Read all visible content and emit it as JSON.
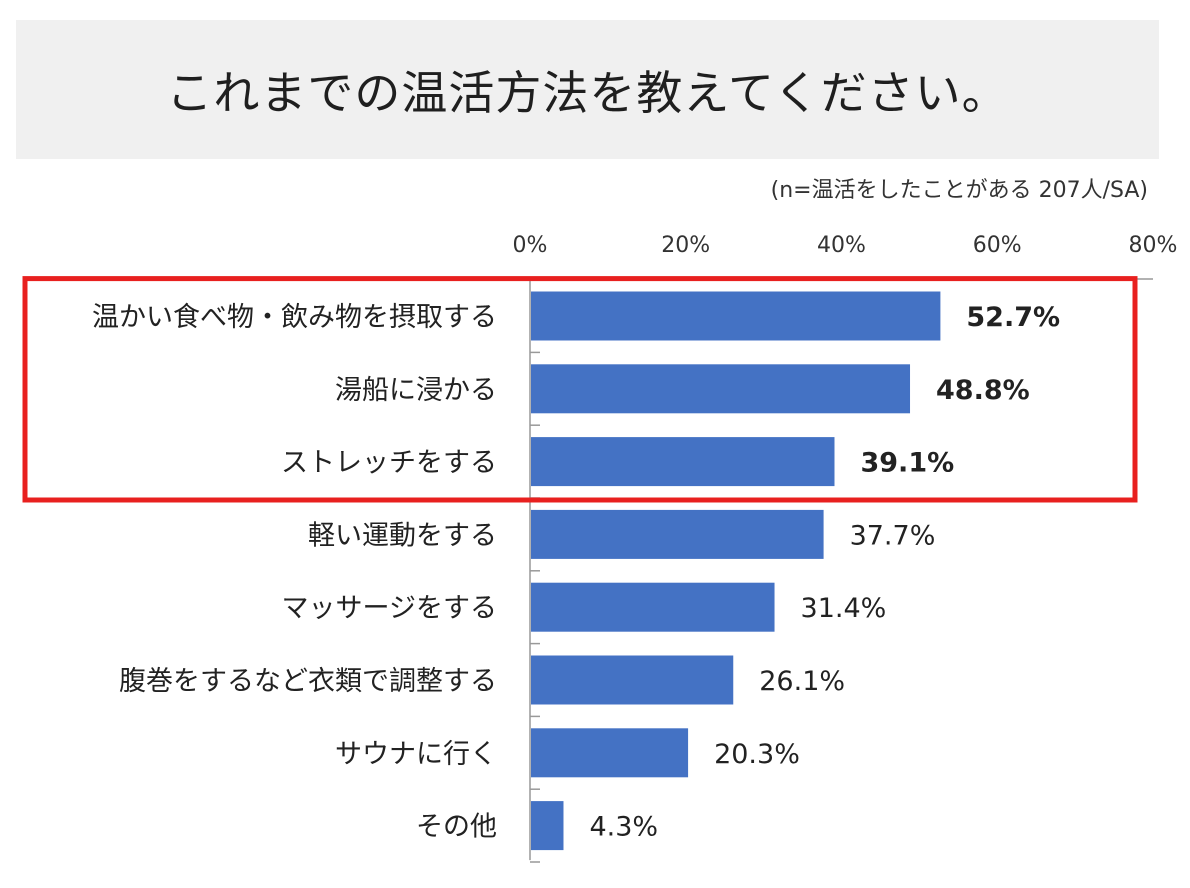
{
  "title": "これまでの温活方法を教えてください。",
  "note": "(n=温活をしたことがある 207人/SA)",
  "colors": {
    "bar": "#4472c4",
    "highlight": "#e8201f",
    "title_bg": "#f0f0f0"
  },
  "chart_data": {
    "type": "bar",
    "orientation": "horizontal",
    "categories": [
      "温かい食べ物・飲み物を摂取する",
      "湯船に浸かる",
      "ストレッチをする",
      "軽い運動をする",
      "マッサージをする",
      "腹巻をするなど衣類で調整する",
      "サウナに行く",
      "その他"
    ],
    "values": [
      52.7,
      48.8,
      39.1,
      37.7,
      31.4,
      26.1,
      20.3,
      4.3
    ],
    "value_labels": [
      "52.7%",
      "48.8%",
      "39.1%",
      "37.7%",
      "31.4%",
      "26.1%",
      "20.3%",
      "4.3%"
    ],
    "highlighted": [
      true,
      true,
      true,
      false,
      false,
      false,
      false,
      false
    ],
    "x_ticks": [
      "0%",
      "20%",
      "40%",
      "60%",
      "80%"
    ],
    "xlim": [
      0,
      80
    ],
    "axis_position": "top",
    "grid": false
  }
}
